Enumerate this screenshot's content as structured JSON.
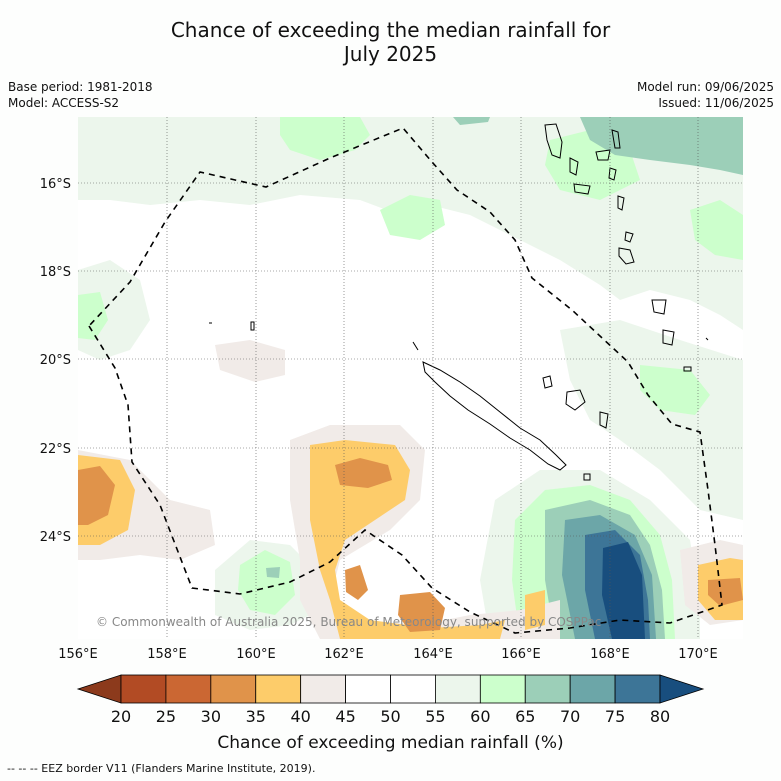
{
  "title_line1": "Chance of exceeding the median rainfall for",
  "title_line2": "July 2025",
  "base_period": "Base period: 1981-2018",
  "model": "Model: ACCESS-S2",
  "model_run": "Model run: 09/06/2025",
  "issued": "Issued: 11/06/2025",
  "copyright": "© Commonwealth of Australia 2025, Bureau of Meteorology, supported by COSPPac",
  "lat_ticks": [
    "16°S",
    "18°S",
    "20°S",
    "22°S",
    "24°S"
  ],
  "lon_ticks": [
    "156°E",
    "158°E",
    "160°E",
    "162°E",
    "164°E",
    "166°E",
    "168°E",
    "170°E"
  ],
  "colorbar": {
    "ticks": [
      "20",
      "25",
      "30",
      "35",
      "40",
      "45",
      "50",
      "55",
      "60",
      "65",
      "70",
      "75",
      "80"
    ],
    "colors": [
      "#8c3a1c",
      "#b24b24",
      "#cb6733",
      "#e0934a",
      "#fdcc6a",
      "#f1ebe8",
      "#ffffff",
      "#ffffff",
      "#ecf6ec",
      "#ccffcc",
      "#9ccfb8",
      "#6ca6a8",
      "#3d7597",
      "#184e7e"
    ],
    "label": "Chance of exceeding median rainfall (%)"
  },
  "legend_footer": "-- -- -- EEZ border V11 (Flanders Marine Institute, 2019)."
}
